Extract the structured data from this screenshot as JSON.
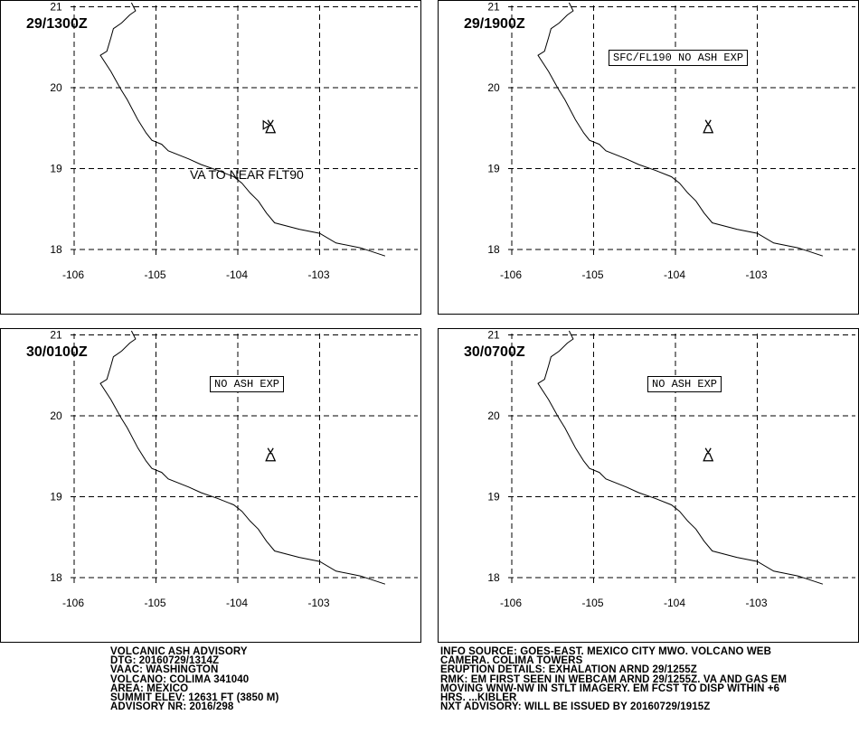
{
  "map": {
    "lon_ticks": [
      -106,
      -105,
      -104,
      -103
    ],
    "lat_ticks": [
      18,
      19,
      20,
      21
    ],
    "lon_labels": [
      "-106",
      "-105",
      "-104",
      "-103"
    ],
    "lat_labels": [
      "18",
      "19",
      "20",
      "21"
    ],
    "volcano_icon": "volcano-icon",
    "volcano": {
      "lon": -103.6,
      "lat": 19.5
    },
    "coastline": [
      [
        -105.3,
        21.05
      ],
      [
        -105.25,
        20.95
      ],
      [
        -105.32,
        20.9
      ],
      [
        -105.42,
        20.8
      ],
      [
        -105.52,
        20.73
      ],
      [
        -105.55,
        20.62
      ],
      [
        -105.6,
        20.45
      ],
      [
        -105.68,
        20.4
      ],
      [
        -105.55,
        20.2
      ],
      [
        -105.43,
        19.98
      ],
      [
        -105.35,
        19.85
      ],
      [
        -105.22,
        19.6
      ],
      [
        -105.12,
        19.44
      ],
      [
        -105.05,
        19.35
      ],
      [
        -104.93,
        19.3
      ],
      [
        -104.85,
        19.22
      ],
      [
        -104.6,
        19.12
      ],
      [
        -104.45,
        19.05
      ],
      [
        -104.25,
        18.98
      ],
      [
        -104.05,
        18.9
      ],
      [
        -103.95,
        18.82
      ],
      [
        -103.85,
        18.7
      ],
      [
        -103.75,
        18.6
      ],
      [
        -103.65,
        18.45
      ],
      [
        -103.55,
        18.33
      ],
      [
        -103.25,
        18.25
      ],
      [
        -103.0,
        18.2
      ],
      [
        -102.8,
        18.08
      ],
      [
        -102.5,
        18.02
      ],
      [
        -102.2,
        17.92
      ]
    ]
  },
  "panels": [
    {
      "timestamp": "29/1300Z",
      "note": "VA TO NEAR FLT90",
      "note_style": "plain",
      "show_ash_marker": true
    },
    {
      "timestamp": "29/1900Z",
      "note": "SFC/FL190 NO ASH EXP",
      "note_style": "box",
      "show_ash_marker": false
    },
    {
      "timestamp": "30/0100Z",
      "note": "NO ASH EXP",
      "note_style": "box",
      "show_ash_marker": false
    },
    {
      "timestamp": "30/0700Z",
      "note": "NO ASH EXP",
      "note_style": "box",
      "show_ash_marker": false
    }
  ],
  "advisory": {
    "left": [
      "VOLCANIC ASH ADVISORY",
      "DTG: 20160729/1314Z",
      "VAAC: WASHINGTON",
      "VOLCANO: COLIMA 341040",
      "AREA: MEXICO",
      "SUMMIT ELEV: 12631 FT (3850 M)",
      "ADVISORY NR: 2016/298"
    ],
    "right": [
      "INFO SOURCE: GOES-EAST. MEXICO CITY MWO. VOLCANO WEB",
      "CAMERA. COLIMA TOWERS",
      "ERUPTION DETAILS: EXHALATION ARND 29/1255Z",
      "RMK: EM FIRST SEEN IN WEBCAM ARND 29/1255Z. VA AND GAS EM",
      "MOVING WNW-NW IN STLT IMAGERY. EM FCST TO DISP WITHIN +6",
      "HRS. ...KIBLER",
      "NXT ADVISORY: WILL BE ISSUED BY 20160729/1915Z"
    ]
  }
}
